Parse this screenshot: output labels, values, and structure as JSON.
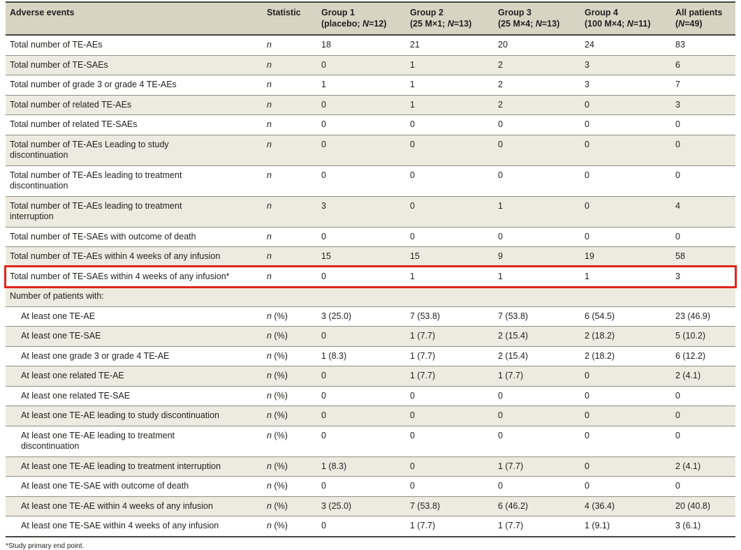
{
  "colors": {
    "header_bg": "#d7d4c3",
    "shaded_bg": "#edebdf",
    "text": "#201f1e",
    "rule_dark": "#454440",
    "rule_light": "#8f8e89",
    "highlight": "#e0251c"
  },
  "table": {
    "header": {
      "adverse_events": "Adverse events",
      "statistic": "Statistic",
      "groups": [
        {
          "line1": "Group 1",
          "pre": "(placebo; ",
          "nvar": "N",
          "post": "=12)"
        },
        {
          "line1": "Group 2",
          "pre": "(25 M×1; ",
          "nvar": "N",
          "post": "=13)"
        },
        {
          "line1": "Group 3",
          "pre": "(25 M×4; ",
          "nvar": "N",
          "post": "=13)"
        },
        {
          "line1": "Group 4",
          "pre": "(100 M×4; ",
          "nvar": "N",
          "post": "=11)"
        },
        {
          "line1": "All patients",
          "pre": "(",
          "nvar": "N",
          "post": "=49)"
        }
      ]
    },
    "rows": [
      {
        "label": "Total number of TE-AEs",
        "stat": "n",
        "stat_suffix": "",
        "shaded": false,
        "indent": false,
        "values": [
          "18",
          "21",
          "20",
          "24",
          "83"
        ]
      },
      {
        "label": "Total number of TE-SAEs",
        "stat": "n",
        "stat_suffix": "",
        "shaded": true,
        "indent": false,
        "values": [
          "0",
          "1",
          "2",
          "3",
          "6"
        ]
      },
      {
        "label": "Total number of grade 3 or grade 4 TE-AEs",
        "stat": "n",
        "stat_suffix": "",
        "shaded": false,
        "indent": false,
        "values": [
          "1",
          "1",
          "2",
          "3",
          "7"
        ]
      },
      {
        "label": "Total number of related TE-AEs",
        "stat": "n",
        "stat_suffix": "",
        "shaded": true,
        "indent": false,
        "values": [
          "0",
          "1",
          "2",
          "0",
          "3"
        ]
      },
      {
        "label": "Total number of related TE-SAEs",
        "stat": "n",
        "stat_suffix": "",
        "shaded": false,
        "indent": false,
        "values": [
          "0",
          "0",
          "0",
          "0",
          "0"
        ]
      },
      {
        "label": "Total number of TE-AEs Leading to study\ndiscontinuation",
        "stat": "n",
        "stat_suffix": "",
        "shaded": true,
        "indent": false,
        "values": [
          "0",
          "0",
          "0",
          "0",
          "0"
        ]
      },
      {
        "label": "Total number of TE-AEs leading to treatment\ndiscontinuation",
        "stat": "n",
        "stat_suffix": "",
        "shaded": false,
        "indent": false,
        "values": [
          "0",
          "0",
          "0",
          "0",
          "0"
        ]
      },
      {
        "label": "Total number of TE-AEs leading to treatment\ninterruption",
        "stat": "n",
        "stat_suffix": "",
        "shaded": true,
        "indent": false,
        "values": [
          "3",
          "0",
          "1",
          "0",
          "4"
        ]
      },
      {
        "label": "Total number of TE-SAEs with outcome of death",
        "stat": "n",
        "stat_suffix": "",
        "shaded": false,
        "indent": false,
        "values": [
          "0",
          "0",
          "0",
          "0",
          "0"
        ]
      },
      {
        "label": "Total number of TE-AEs within 4 weeks of any infusion",
        "stat": "n",
        "stat_suffix": "",
        "shaded": true,
        "indent": false,
        "values": [
          "15",
          "15",
          "9",
          "19",
          "58"
        ]
      },
      {
        "label": "Total number of TE-SAEs within 4 weeks of any infusion*",
        "stat": "n",
        "stat_suffix": "",
        "shaded": false,
        "indent": false,
        "highlight": true,
        "values": [
          "0",
          "1",
          "1",
          "1",
          "3"
        ]
      },
      {
        "label": "Number of patients with:",
        "section": true,
        "shaded": true
      },
      {
        "label": "At least one TE-AE",
        "stat": "n",
        "stat_suffix": " (%)",
        "shaded": false,
        "indent": true,
        "values": [
          "3 (25.0)",
          "7 (53.8)",
          "7 (53.8)",
          "6 (54.5)",
          "23 (46.9)"
        ]
      },
      {
        "label": "At least one TE-SAE",
        "stat": "n",
        "stat_suffix": " (%)",
        "shaded": true,
        "indent": true,
        "values": [
          "0",
          "1 (7.7)",
          "2 (15.4)",
          "2 (18.2)",
          "5 (10.2)"
        ]
      },
      {
        "label": "At least one grade 3 or grade 4 TE-AE",
        "stat": "n",
        "stat_suffix": " (%)",
        "shaded": false,
        "indent": true,
        "values": [
          "1 (8.3)",
          "1 (7.7)",
          "2 (15.4)",
          "2 (18.2)",
          "6 (12.2)"
        ]
      },
      {
        "label": "At least one related TE-AE",
        "stat": "n",
        "stat_suffix": " (%)",
        "shaded": true,
        "indent": true,
        "values": [
          "0",
          "1 (7.7)",
          "1 (7.7)",
          "0",
          "2 (4.1)"
        ]
      },
      {
        "label": "At least one related TE-SAE",
        "stat": "n",
        "stat_suffix": " (%)",
        "shaded": false,
        "indent": true,
        "values": [
          "0",
          "0",
          "0",
          "0",
          "0"
        ]
      },
      {
        "label": "At least one TE-AE leading to study discontinuation",
        "stat": "n",
        "stat_suffix": " (%)",
        "shaded": true,
        "indent": true,
        "values": [
          "0",
          "0",
          "0",
          "0",
          "0"
        ]
      },
      {
        "label": "At least one TE-AE leading to treatment\ndiscontinuation",
        "stat": "n",
        "stat_suffix": " (%)",
        "shaded": false,
        "indent": true,
        "values": [
          "0",
          "0",
          "0",
          "0",
          "0"
        ]
      },
      {
        "label": "At least one TE-AE leading to treatment interruption",
        "stat": "n",
        "stat_suffix": " (%)",
        "shaded": true,
        "indent": true,
        "values": [
          "1 (8.3)",
          "0",
          "1 (7.7)",
          "0",
          "2 (4.1)"
        ]
      },
      {
        "label": "At least one TE-SAE with outcome of death",
        "stat": "n",
        "stat_suffix": " (%)",
        "shaded": false,
        "indent": true,
        "values": [
          "0",
          "0",
          "0",
          "0",
          "0"
        ]
      },
      {
        "label": "At least one TE-AE within 4 weeks of any infusion",
        "stat": "n",
        "stat_suffix": " (%)",
        "shaded": true,
        "indent": true,
        "values": [
          "3 (25.0)",
          "7 (53.8)",
          "6 (46.2)",
          "4 (36.4)",
          "20 (40.8)"
        ]
      },
      {
        "label": "At least one TE-SAE within 4 weeks of any infusion",
        "stat": "n",
        "stat_suffix": " (%)",
        "shaded": false,
        "indent": true,
        "values": [
          "0",
          "1 (7.7)",
          "1 (7.7)",
          "1 (9.1)",
          "3 (6.1)"
        ]
      }
    ],
    "footnote": "*Study primary end point."
  }
}
